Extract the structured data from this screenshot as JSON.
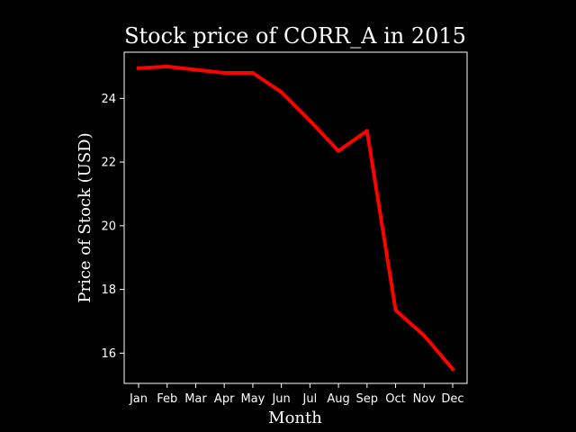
{
  "chart_data": {
    "type": "line",
    "title": "Stock price of CORR_A in 2015",
    "xlabel": "Month",
    "ylabel": "Price of Stock (USD)",
    "categories": [
      "Jan",
      "Feb",
      "Mar",
      "Apr",
      "May",
      "Jun",
      "Jul",
      "Aug",
      "Sep",
      "Oct",
      "Nov",
      "Dec"
    ],
    "series": [
      {
        "values": [
          24.95,
          25.0,
          24.9,
          24.8,
          24.8,
          24.2,
          23.3,
          22.35,
          22.98,
          17.35,
          16.55,
          15.5
        ],
        "color": "#ff0000"
      }
    ],
    "yticks": [
      16,
      18,
      20,
      22,
      24
    ],
    "ylim": [
      15.05,
      25.45
    ],
    "grid": false,
    "legend": "none",
    "background_color": "#000000",
    "foreground_color": "#ffffff"
  }
}
